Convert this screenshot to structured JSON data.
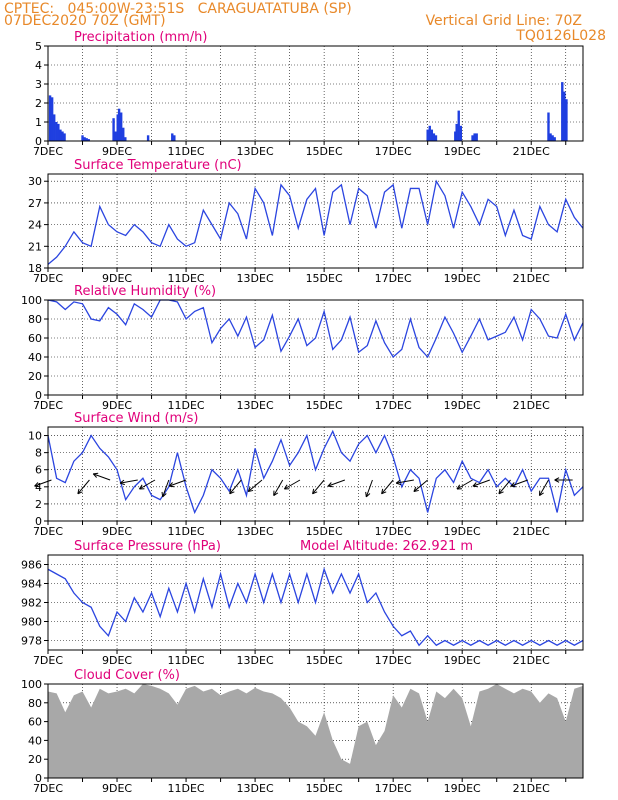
{
  "header": {
    "line1_left": "CPTEC:   045:00W-23:51S   CARAGUATATUBA (SP)",
    "line2_left": "07DEC2020 70Z (GMT)",
    "line2_right": "Vertical Grid Line: 70Z",
    "line3_right": "TQ0126L028",
    "altitude": "Model Altitude: 262.921 m",
    "text_color": "#e8892a",
    "title_color": "#e0007a"
  },
  "date_labels": [
    "7DEC",
    "9DEC",
    "11DEC",
    "13DEC",
    "15DEC",
    "17DEC",
    "19DEC",
    "21DEC"
  ],
  "chart_data": [
    {
      "type": "bar",
      "title": "Precipitation (mm/h)",
      "ylim": [
        0,
        5
      ],
      "yticks": [
        0,
        1,
        2,
        3,
        4,
        5
      ],
      "color": "#1f3fe0",
      "x_days": [
        0.06,
        0.12,
        0.18,
        0.24,
        0.3,
        0.36,
        0.42,
        0.48,
        1.0,
        1.06,
        1.12,
        1.18,
        1.9,
        1.96,
        2.02,
        2.06,
        2.12,
        2.18,
        2.24,
        2.9,
        3.6,
        3.66,
        11.0,
        11.06,
        11.12,
        11.18,
        11.24,
        11.8,
        11.84,
        11.9,
        11.96,
        12.3,
        12.36,
        12.42,
        14.5,
        14.56,
        14.62,
        14.68,
        14.9,
        14.96,
        15.02
      ],
      "values": [
        2.4,
        2.3,
        1.4,
        1.0,
        0.9,
        0.6,
        0.5,
        0.4,
        0.3,
        0.2,
        0.15,
        0.1,
        1.2,
        0.5,
        1.4,
        1.7,
        1.5,
        0.7,
        0.2,
        0.3,
        0.4,
        0.3,
        0.6,
        0.8,
        0.6,
        0.4,
        0.3,
        0.5,
        0.9,
        1.6,
        0.8,
        0.3,
        0.4,
        0.4,
        1.5,
        0.4,
        0.3,
        0.2,
        3.1,
        2.6,
        2.2
      ]
    },
    {
      "type": "line",
      "title": "Surface Temperature (nC)",
      "ylim": [
        18,
        31
      ],
      "yticks": [
        18,
        21,
        24,
        27,
        30
      ],
      "color": "#2b45e0",
      "x_days": [
        0,
        0.25,
        0.5,
        0.75,
        1.0,
        1.25,
        1.5,
        1.75,
        2.0,
        2.25,
        2.5,
        2.75,
        3.0,
        3.25,
        3.5,
        3.75,
        4.0,
        4.25,
        4.5,
        4.75,
        5.0,
        5.25,
        5.5,
        5.75,
        6.0,
        6.25,
        6.5,
        6.75,
        7.0,
        7.25,
        7.5,
        7.75,
        8.0,
        8.25,
        8.5,
        8.75,
        9.0,
        9.25,
        9.5,
        9.75,
        10.0,
        10.25,
        10.5,
        10.75,
        11.0,
        11.25,
        11.5,
        11.75,
        12.0,
        12.25,
        12.5,
        12.75,
        13.0,
        13.25,
        13.5,
        13.75,
        14.0,
        14.25,
        14.5,
        14.75,
        15.0,
        15.25,
        15.5
      ],
      "values": [
        18.5,
        19.5,
        21,
        23,
        21.5,
        21,
        26.5,
        24,
        23,
        22.5,
        24,
        23,
        21.5,
        21,
        24,
        22,
        21,
        21.5,
        26,
        24,
        22,
        27,
        25.5,
        22,
        29,
        27,
        22.5,
        29.5,
        28,
        23.5,
        27.5,
        29,
        22.5,
        28.5,
        29.5,
        24,
        29,
        28,
        23.5,
        28.5,
        29.5,
        23.5,
        29,
        29,
        24,
        30,
        28,
        23.5,
        28.5,
        26.5,
        24,
        27.5,
        26.5,
        22.5,
        26,
        22.5,
        22,
        26.5,
        24,
        23,
        27.5,
        25,
        23.5
      ]
    },
    {
      "type": "line",
      "title": "Relative Humidity (%)",
      "ylim": [
        0,
        100
      ],
      "yticks": [
        0,
        20,
        40,
        60,
        80,
        100
      ],
      "color": "#2b45e0",
      "x_days": [
        0,
        0.25,
        0.5,
        0.75,
        1.0,
        1.25,
        1.5,
        1.75,
        2.0,
        2.25,
        2.5,
        2.75,
        3.0,
        3.25,
        3.5,
        3.75,
        4.0,
        4.25,
        4.5,
        4.75,
        5.0,
        5.25,
        5.5,
        5.75,
        6.0,
        6.25,
        6.5,
        6.75,
        7.0,
        7.25,
        7.5,
        7.75,
        8.0,
        8.25,
        8.5,
        8.75,
        9.0,
        9.25,
        9.5,
        9.75,
        10.0,
        10.25,
        10.5,
        10.75,
        11.0,
        11.25,
        11.5,
        11.75,
        12.0,
        12.25,
        12.5,
        12.75,
        13.0,
        13.25,
        13.5,
        13.75,
        14.0,
        14.25,
        14.5,
        14.75,
        15.0,
        15.25,
        15.5
      ],
      "values": [
        100,
        98,
        90,
        98,
        96,
        80,
        78,
        92,
        85,
        74,
        96,
        90,
        82,
        100,
        100,
        98,
        80,
        88,
        92,
        55,
        70,
        80,
        62,
        82,
        50,
        58,
        84,
        46,
        62,
        80,
        52,
        60,
        88,
        48,
        58,
        82,
        45,
        52,
        78,
        55,
        40,
        48,
        80,
        50,
        40,
        60,
        82,
        65,
        45,
        62,
        80,
        58,
        62,
        66,
        82,
        58,
        90,
        80,
        62,
        60,
        85,
        58,
        76
      ]
    },
    {
      "type": "line",
      "title": "Surface Wind (m/s)",
      "ylim": [
        0,
        11
      ],
      "yticks": [
        0,
        2,
        4,
        6,
        8,
        10
      ],
      "color": "#2b45e0",
      "x_days": [
        0,
        0.25,
        0.5,
        0.75,
        1.0,
        1.25,
        1.5,
        1.75,
        2.0,
        2.25,
        2.5,
        2.75,
        3.0,
        3.25,
        3.5,
        3.75,
        4.0,
        4.25,
        4.5,
        4.75,
        5.0,
        5.25,
        5.5,
        5.75,
        6.0,
        6.25,
        6.5,
        6.75,
        7.0,
        7.25,
        7.5,
        7.75,
        8.0,
        8.25,
        8.5,
        8.75,
        9.0,
        9.25,
        9.5,
        9.75,
        10.0,
        10.25,
        10.5,
        10.75,
        11.0,
        11.25,
        11.5,
        11.75,
        12.0,
        12.25,
        12.5,
        12.75,
        13.0,
        13.25,
        13.5,
        13.75,
        14.0,
        14.25,
        14.5,
        14.75,
        15.0,
        15.25,
        15.5
      ],
      "values": [
        10,
        5,
        4.5,
        7,
        8,
        10,
        8.5,
        7.5,
        6,
        2.5,
        4,
        5,
        3,
        2.5,
        4,
        8,
        4,
        1,
        3,
        6,
        5,
        3.5,
        6,
        3,
        8.5,
        5,
        7,
        9.5,
        6.5,
        8,
        10,
        6,
        8.5,
        10.5,
        8,
        7,
        9,
        10,
        8,
        10,
        7.5,
        4,
        6,
        5,
        1,
        5,
        6,
        4.5,
        7,
        5,
        4.5,
        6,
        4,
        5,
        4,
        6,
        3.5,
        5,
        5,
        1,
        6,
        3,
        4
      ]
    },
    {
      "type": "line",
      "title": "Surface Pressure (hPa)",
      "ylim": [
        977,
        987
      ],
      "yticks": [
        978,
        980,
        982,
        984,
        986
      ],
      "color": "#2b45e0",
      "x_days": [
        0,
        0.25,
        0.5,
        0.75,
        1.0,
        1.25,
        1.5,
        1.75,
        2.0,
        2.25,
        2.5,
        2.75,
        3.0,
        3.25,
        3.5,
        3.75,
        4.0,
        4.25,
        4.5,
        4.75,
        5.0,
        5.25,
        5.5,
        5.75,
        6.0,
        6.25,
        6.5,
        6.75,
        7.0,
        7.25,
        7.5,
        7.75,
        8.0,
        8.25,
        8.5,
        8.75,
        9.0,
        9.25,
        9.5,
        9.75,
        10.0,
        10.25,
        10.5,
        10.75,
        11.0,
        11.25,
        11.5,
        11.75,
        12.0,
        12.25,
        12.5,
        12.75,
        13.0,
        13.25,
        13.5,
        13.75,
        14.0,
        14.25,
        14.5,
        14.75,
        15.0,
        15.25,
        15.5
      ],
      "values": [
        985.5,
        985,
        984.5,
        983,
        982,
        981.5,
        979.5,
        978.5,
        981,
        980,
        982.5,
        981,
        983,
        980.5,
        983.5,
        981,
        984,
        981,
        984.5,
        981.5,
        985,
        981.5,
        984,
        982,
        985,
        982,
        985,
        982,
        985,
        982,
        985,
        982,
        985.5,
        983,
        985,
        983,
        985,
        982,
        983,
        981,
        979.5,
        978.5,
        979,
        977.5,
        978.5,
        977.5,
        978,
        977.5,
        978,
        977.5,
        978,
        977.5,
        978,
        977.5,
        978,
        977.5,
        978,
        977.5,
        978,
        977.5,
        978,
        977.5,
        978
      ]
    },
    {
      "type": "area",
      "title": "Cloud Cover (%)",
      "ylim": [
        0,
        100
      ],
      "yticks": [
        0,
        20,
        40,
        60,
        80,
        100
      ],
      "color": "#a8a8a8",
      "x_days": [
        0,
        0.25,
        0.5,
        0.75,
        1.0,
        1.25,
        1.5,
        1.75,
        2.0,
        2.25,
        2.5,
        2.75,
        3.0,
        3.25,
        3.5,
        3.75,
        4.0,
        4.25,
        4.5,
        4.75,
        5.0,
        5.25,
        5.5,
        5.75,
        6.0,
        6.25,
        6.5,
        6.75,
        7.0,
        7.25,
        7.5,
        7.75,
        8.0,
        8.25,
        8.5,
        8.75,
        9.0,
        9.25,
        9.5,
        9.75,
        10.0,
        10.25,
        10.5,
        10.75,
        11.0,
        11.25,
        11.5,
        11.75,
        12.0,
        12.25,
        12.5,
        12.75,
        13.0,
        13.25,
        13.5,
        13.75,
        14.0,
        14.25,
        14.5,
        14.75,
        15.0,
        15.25,
        15.5
      ],
      "values": [
        92,
        90,
        70,
        88,
        92,
        75,
        95,
        90,
        92,
        95,
        90,
        100,
        98,
        95,
        90,
        78,
        95,
        98,
        92,
        95,
        88,
        92,
        95,
        90,
        96,
        92,
        90,
        85,
        75,
        60,
        55,
        45,
        70,
        40,
        20,
        15,
        55,
        60,
        35,
        50,
        88,
        75,
        95,
        90,
        60,
        92,
        85,
        95,
        85,
        55,
        92,
        95,
        100,
        95,
        90,
        95,
        92,
        80,
        90,
        85,
        60,
        95,
        98
      ]
    }
  ]
}
